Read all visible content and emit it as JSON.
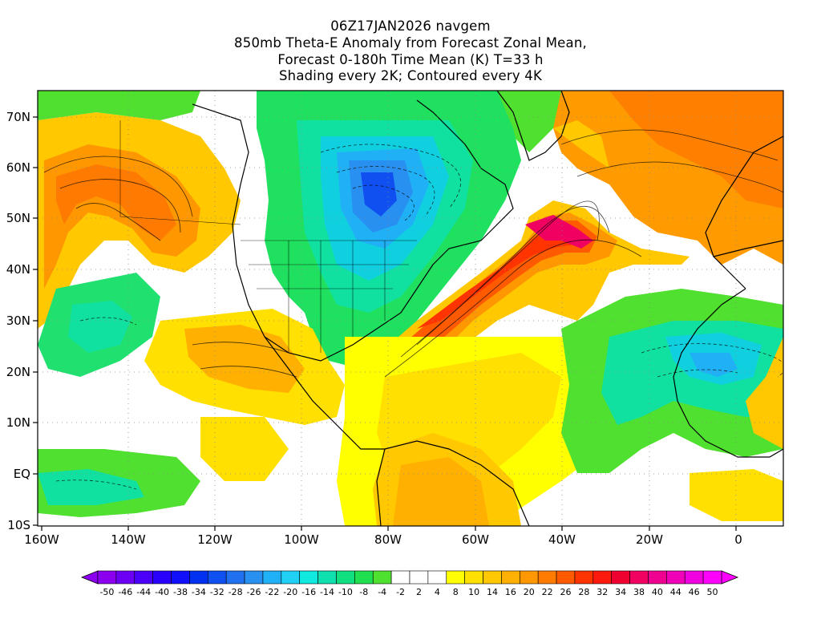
{
  "title": {
    "line1": "06Z17JAN2026 navgem",
    "line2": "850mb Theta-E Anomaly from Forecast Zonal Mean,",
    "line3": "Forecast 0-180h Time Mean (K) T=33 h",
    "line4": "Shading every 2K; Contoured every 4K"
  },
  "map": {
    "lat_labels": [
      "70N",
      "60N",
      "50N",
      "40N",
      "30N",
      "20N",
      "10N",
      "EQ",
      "10S"
    ],
    "lon_labels": [
      "160W",
      "140W",
      "120W",
      "100W",
      "80W",
      "60W",
      "40W",
      "20W",
      "0"
    ]
  },
  "colorbar": {
    "labels": [
      "-50",
      "-46",
      "-44",
      "-40",
      "-38",
      "-34",
      "-32",
      "-28",
      "-26",
      "-22",
      "-20",
      "-16",
      "-14",
      "-10",
      "-8",
      "-4",
      "-2",
      "2",
      "4",
      "8",
      "10",
      "14",
      "16",
      "20",
      "22",
      "26",
      "28",
      "32",
      "34",
      "38",
      "40",
      "44",
      "46",
      "50"
    ],
    "colors": [
      "#8c00f0",
      "#6c00f5",
      "#4b00fa",
      "#2a00ff",
      "#1010ff",
      "#0030f0",
      "#1050f0",
      "#2070f0",
      "#2890f0",
      "#20b0f5",
      "#20d0f5",
      "#10e8e0",
      "#10e0b0",
      "#10e080",
      "#20e050",
      "#50e030",
      "#ffffff",
      "#ffffff",
      "#ffffff",
      "#ffff00",
      "#ffe000",
      "#ffc800",
      "#ffb000",
      "#ff9800",
      "#ff7a00",
      "#ff5a00",
      "#ff3400",
      "#ff1a10",
      "#f00030",
      "#f00060",
      "#f00090",
      "#f000b8",
      "#f000e0",
      "#ff00ff"
    ]
  }
}
